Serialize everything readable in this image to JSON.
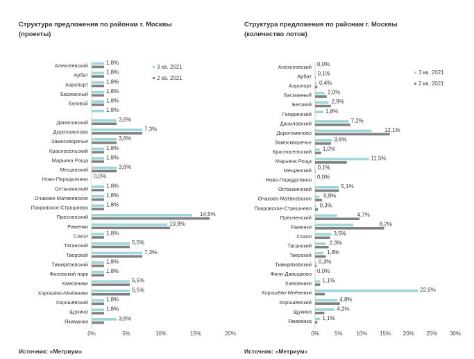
{
  "chart_data": [
    {
      "type": "bar",
      "orientation": "horizontal",
      "title_line1": "Структура предложения по районам г. Москвы",
      "title_line2": "(проекты)",
      "source": "Источник: «Метриум»",
      "categories": [
        "Алексеевский",
        "Арбат",
        "Аэропорт",
        "Басманный",
        "Беговой",
        "",
        "Даниловский",
        "Дорогомилово",
        "Замоскворечье",
        "Красносельский",
        "Марьина Роща",
        "Мещанский",
        "Ново-Переделкино",
        "Останкинский",
        "Очаково-Матвеевское",
        "Покровское-Стрешнево",
        "Пресненский",
        "Раменки",
        "Сокол",
        "Таганский",
        "Тверской",
        "Тимирязевский",
        "Филевский парк",
        "Хамовники",
        "Хорошёво-Мнёвники",
        "Хорошёвский",
        "Щукино",
        "Якиманка"
      ],
      "series": [
        {
          "name": "3 кв. 2021",
          "color": "#9dd5da",
          "values": [
            1.8,
            1.8,
            1.8,
            1.8,
            1.8,
            1.8,
            3.6,
            7.3,
            3.6,
            1.8,
            1.8,
            3.6,
            0,
            1.8,
            1.8,
            1.8,
            14.5,
            10.9,
            1.8,
            5.5,
            7.3,
            1.8,
            1.8,
            5.5,
            5.5,
            1.8,
            1.8,
            3.6
          ]
        },
        {
          "name": "2 кв. 2021",
          "color": "#808080",
          "values": [
            1.8,
            1.8,
            1.8,
            1.8,
            1.8,
            0,
            3.6,
            7.3,
            3.6,
            1.8,
            1.8,
            3.6,
            0,
            1.8,
            1.8,
            1.8,
            17.0,
            11.3,
            1.8,
            5.5,
            7.3,
            1.8,
            1.8,
            5.5,
            5.5,
            1.8,
            1.8,
            1.8
          ]
        }
      ],
      "labels": [
        "1,8%",
        "1,8%",
        "1,8%",
        "1,8%",
        "1,8%",
        "1,8%",
        "3,6%",
        "7,3%",
        "3,6%",
        "1,8%",
        "1,8%",
        "3,6%",
        "0,0%",
        "1,8%",
        "1,8%",
        "1,8%",
        "14,5%",
        "10,9%",
        "1,8%",
        "5,5%",
        "7,3%",
        "1,8%",
        "1,8%",
        "5,5%",
        "5,5%",
        "1,8%",
        "1,8%",
        "3,6%"
      ],
      "xlim": [
        0,
        20
      ],
      "xticks": [
        "0%",
        "5%",
        "10%",
        "15%",
        "20%"
      ],
      "xtick_values": [
        0,
        5,
        10,
        15,
        20
      ],
      "legend_position": "top-right"
    },
    {
      "type": "bar",
      "orientation": "horizontal",
      "title_line1": "Структура предложения по районам г. Москвы",
      "title_line2": "(количество лотов)",
      "source": "Источник: «Метриум»",
      "categories": [
        "Алексеевский",
        "Арбат",
        "Аэропорт",
        "Басманный",
        "Беговой",
        "Гагаринский",
        "Даниловский",
        "Дорогомилово",
        "Замоскворечье",
        "Красносельский",
        "Марьина Роща",
        "Мещанский",
        "Ново-Переделкино",
        "Останкинский",
        "Очаково-Матвеевское",
        "Покровское-Стрешнево",
        "Пресненский",
        "Раменки",
        "Сокол",
        "Таганский",
        "Тверской",
        "Тимирязевский",
        "Фили-Давыдково",
        "Хамовники",
        "Хорошёво-Мнёвники",
        "Хорошёвский",
        "Щукино",
        "Якиманка"
      ],
      "series": [
        {
          "name": "3 кв. 2021",
          "color": "#9dd5da",
          "values": [
            0,
            0.1,
            0.4,
            2.0,
            2.9,
            1.8,
            7.2,
            12.1,
            3.6,
            1.0,
            11.5,
            0.1,
            0,
            5.1,
            0.9,
            0.3,
            4.7,
            8.2,
            3.5,
            2.3,
            1.8,
            0.3,
            0,
            1.1,
            22.0,
            4.8,
            4.2,
            1.1
          ]
        },
        {
          "name": "2 кв. 2021",
          "color": "#808080",
          "values": [
            0,
            0.1,
            0.5,
            2.5,
            3.4,
            0,
            7.6,
            16.0,
            3.4,
            1.3,
            6.8,
            0.1,
            0,
            5.1,
            1.5,
            0.6,
            9.5,
            14.8,
            3.2,
            2.9,
            2.3,
            0.3,
            0,
            1.1,
            2.1,
            5.3,
            2.0,
            0.5
          ]
        }
      ],
      "labels": [
        "0,0%",
        "0,1%",
        "0,4%",
        "2,0%",
        "2,9%",
        "1,8%",
        "7,2%",
        "12,1%",
        "3,6%",
        "1,0%",
        "11,5%",
        "0,1%",
        "0,0%",
        "5,1%",
        "0,9%",
        "0,3%",
        "4,7%",
        "8,2%",
        "3,5%",
        "2,3%",
        "1,8%",
        "0,3%",
        "0,0%",
        "1,1%",
        "22,0%",
        "4,8%",
        "4,2%",
        "1,1%"
      ],
      "xlim": [
        0,
        30
      ],
      "xticks": [
        "0%",
        "5%",
        "10%",
        "15%",
        "20%",
        "25%",
        "30%"
      ],
      "xtick_values": [
        0,
        5,
        10,
        15,
        20,
        25,
        30
      ],
      "legend_position": "top-right"
    }
  ]
}
